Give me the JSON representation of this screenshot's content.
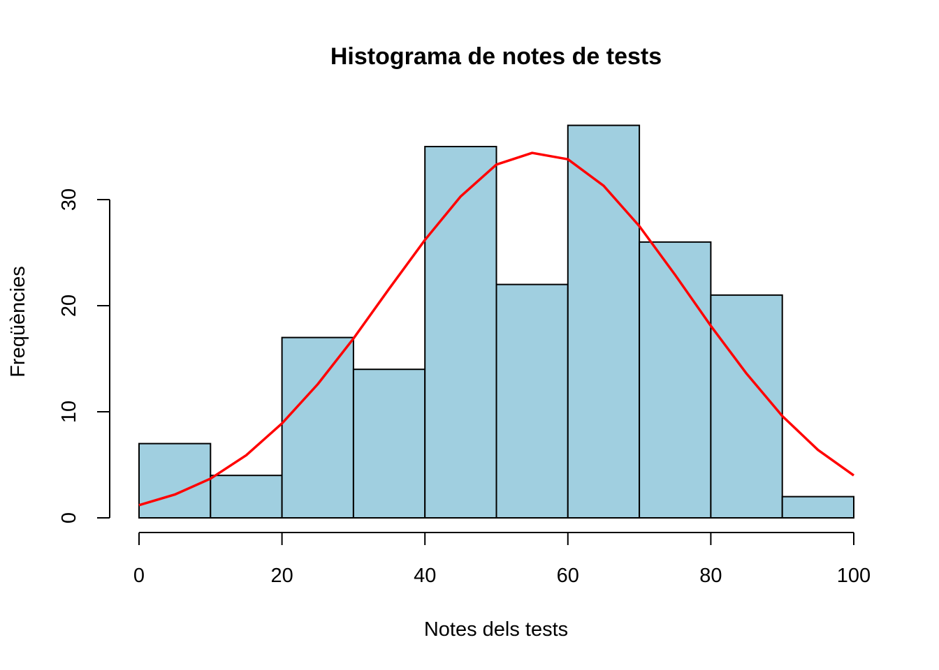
{
  "chart_data": {
    "type": "bar",
    "title": "Histograma de notes de tests",
    "xlabel": "Notes dels tests",
    "ylabel": "Freqüències",
    "bin_edges": [
      0,
      10,
      20,
      30,
      40,
      50,
      60,
      70,
      80,
      90,
      100
    ],
    "values": [
      7,
      4,
      17,
      14,
      35,
      22,
      37,
      26,
      21,
      2
    ],
    "xlim": [
      0,
      100
    ],
    "ylim": [
      0,
      37
    ],
    "x_ticks": [
      0,
      20,
      40,
      60,
      80,
      100
    ],
    "y_ticks": [
      0,
      10,
      20,
      30
    ],
    "x_tick_labels": [
      "0",
      "20",
      "40",
      "60",
      "80",
      "100"
    ],
    "y_tick_labels": [
      "0",
      "10",
      "20",
      "30"
    ],
    "bar_color": "#a0cfe0",
    "bar_edge_color": "#000000",
    "grid": false,
    "overlay": {
      "type": "line",
      "description": "normal density curve",
      "color": "#ff0000",
      "x": [
        0,
        5,
        10,
        15,
        20,
        25,
        30,
        35,
        40,
        45,
        50,
        55,
        60,
        65,
        70,
        75,
        80,
        85,
        90,
        95,
        100
      ],
      "y": [
        1.2,
        2.2,
        3.7,
        5.9,
        8.9,
        12.6,
        16.9,
        21.6,
        26.2,
        30.3,
        33.3,
        34.4,
        33.8,
        31.3,
        27.5,
        22.9,
        18.1,
        13.6,
        9.6,
        6.4,
        4.0
      ]
    }
  }
}
